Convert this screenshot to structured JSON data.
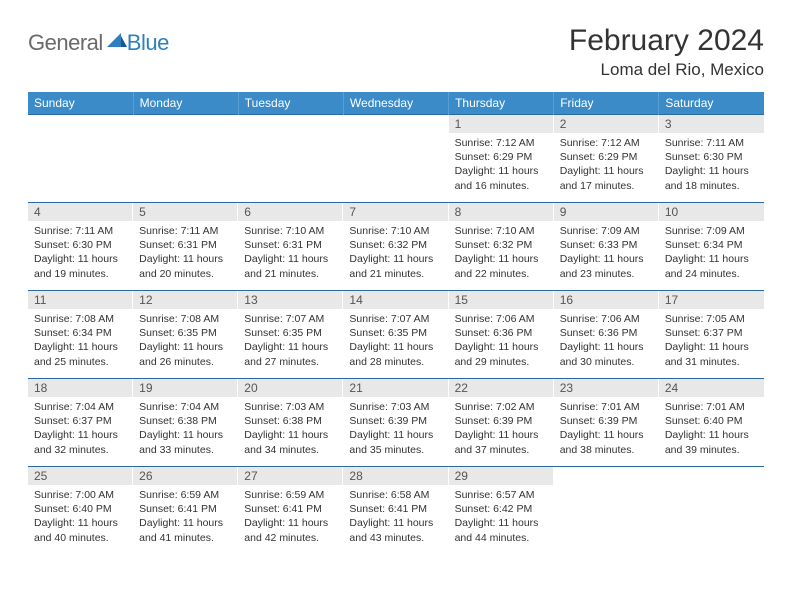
{
  "logo": {
    "part1": "General",
    "part2": "Blue"
  },
  "title": "February 2024",
  "location": "Loma del Rio, Mexico",
  "colors": {
    "header_bg": "#3b8bc9",
    "header_text": "#ffffff",
    "row_border": "#2a6aa0",
    "daynum_bg": "#e8e8e8",
    "logo_gray": "#6a6a6a",
    "logo_blue": "#2f7fbf"
  },
  "weekdays": [
    "Sunday",
    "Monday",
    "Tuesday",
    "Wednesday",
    "Thursday",
    "Friday",
    "Saturday"
  ],
  "weeks": [
    [
      null,
      null,
      null,
      null,
      {
        "n": "1",
        "sr": "Sunrise: 7:12 AM",
        "ss": "Sunset: 6:29 PM",
        "d1": "Daylight: 11 hours",
        "d2": "and 16 minutes."
      },
      {
        "n": "2",
        "sr": "Sunrise: 7:12 AM",
        "ss": "Sunset: 6:29 PM",
        "d1": "Daylight: 11 hours",
        "d2": "and 17 minutes."
      },
      {
        "n": "3",
        "sr": "Sunrise: 7:11 AM",
        "ss": "Sunset: 6:30 PM",
        "d1": "Daylight: 11 hours",
        "d2": "and 18 minutes."
      }
    ],
    [
      {
        "n": "4",
        "sr": "Sunrise: 7:11 AM",
        "ss": "Sunset: 6:30 PM",
        "d1": "Daylight: 11 hours",
        "d2": "and 19 minutes."
      },
      {
        "n": "5",
        "sr": "Sunrise: 7:11 AM",
        "ss": "Sunset: 6:31 PM",
        "d1": "Daylight: 11 hours",
        "d2": "and 20 minutes."
      },
      {
        "n": "6",
        "sr": "Sunrise: 7:10 AM",
        "ss": "Sunset: 6:31 PM",
        "d1": "Daylight: 11 hours",
        "d2": "and 21 minutes."
      },
      {
        "n": "7",
        "sr": "Sunrise: 7:10 AM",
        "ss": "Sunset: 6:32 PM",
        "d1": "Daylight: 11 hours",
        "d2": "and 21 minutes."
      },
      {
        "n": "8",
        "sr": "Sunrise: 7:10 AM",
        "ss": "Sunset: 6:32 PM",
        "d1": "Daylight: 11 hours",
        "d2": "and 22 minutes."
      },
      {
        "n": "9",
        "sr": "Sunrise: 7:09 AM",
        "ss": "Sunset: 6:33 PM",
        "d1": "Daylight: 11 hours",
        "d2": "and 23 minutes."
      },
      {
        "n": "10",
        "sr": "Sunrise: 7:09 AM",
        "ss": "Sunset: 6:34 PM",
        "d1": "Daylight: 11 hours",
        "d2": "and 24 minutes."
      }
    ],
    [
      {
        "n": "11",
        "sr": "Sunrise: 7:08 AM",
        "ss": "Sunset: 6:34 PM",
        "d1": "Daylight: 11 hours",
        "d2": "and 25 minutes."
      },
      {
        "n": "12",
        "sr": "Sunrise: 7:08 AM",
        "ss": "Sunset: 6:35 PM",
        "d1": "Daylight: 11 hours",
        "d2": "and 26 minutes."
      },
      {
        "n": "13",
        "sr": "Sunrise: 7:07 AM",
        "ss": "Sunset: 6:35 PM",
        "d1": "Daylight: 11 hours",
        "d2": "and 27 minutes."
      },
      {
        "n": "14",
        "sr": "Sunrise: 7:07 AM",
        "ss": "Sunset: 6:35 PM",
        "d1": "Daylight: 11 hours",
        "d2": "and 28 minutes."
      },
      {
        "n": "15",
        "sr": "Sunrise: 7:06 AM",
        "ss": "Sunset: 6:36 PM",
        "d1": "Daylight: 11 hours",
        "d2": "and 29 minutes."
      },
      {
        "n": "16",
        "sr": "Sunrise: 7:06 AM",
        "ss": "Sunset: 6:36 PM",
        "d1": "Daylight: 11 hours",
        "d2": "and 30 minutes."
      },
      {
        "n": "17",
        "sr": "Sunrise: 7:05 AM",
        "ss": "Sunset: 6:37 PM",
        "d1": "Daylight: 11 hours",
        "d2": "and 31 minutes."
      }
    ],
    [
      {
        "n": "18",
        "sr": "Sunrise: 7:04 AM",
        "ss": "Sunset: 6:37 PM",
        "d1": "Daylight: 11 hours",
        "d2": "and 32 minutes."
      },
      {
        "n": "19",
        "sr": "Sunrise: 7:04 AM",
        "ss": "Sunset: 6:38 PM",
        "d1": "Daylight: 11 hours",
        "d2": "and 33 minutes."
      },
      {
        "n": "20",
        "sr": "Sunrise: 7:03 AM",
        "ss": "Sunset: 6:38 PM",
        "d1": "Daylight: 11 hours",
        "d2": "and 34 minutes."
      },
      {
        "n": "21",
        "sr": "Sunrise: 7:03 AM",
        "ss": "Sunset: 6:39 PM",
        "d1": "Daylight: 11 hours",
        "d2": "and 35 minutes."
      },
      {
        "n": "22",
        "sr": "Sunrise: 7:02 AM",
        "ss": "Sunset: 6:39 PM",
        "d1": "Daylight: 11 hours",
        "d2": "and 37 minutes."
      },
      {
        "n": "23",
        "sr": "Sunrise: 7:01 AM",
        "ss": "Sunset: 6:39 PM",
        "d1": "Daylight: 11 hours",
        "d2": "and 38 minutes."
      },
      {
        "n": "24",
        "sr": "Sunrise: 7:01 AM",
        "ss": "Sunset: 6:40 PM",
        "d1": "Daylight: 11 hours",
        "d2": "and 39 minutes."
      }
    ],
    [
      {
        "n": "25",
        "sr": "Sunrise: 7:00 AM",
        "ss": "Sunset: 6:40 PM",
        "d1": "Daylight: 11 hours",
        "d2": "and 40 minutes."
      },
      {
        "n": "26",
        "sr": "Sunrise: 6:59 AM",
        "ss": "Sunset: 6:41 PM",
        "d1": "Daylight: 11 hours",
        "d2": "and 41 minutes."
      },
      {
        "n": "27",
        "sr": "Sunrise: 6:59 AM",
        "ss": "Sunset: 6:41 PM",
        "d1": "Daylight: 11 hours",
        "d2": "and 42 minutes."
      },
      {
        "n": "28",
        "sr": "Sunrise: 6:58 AM",
        "ss": "Sunset: 6:41 PM",
        "d1": "Daylight: 11 hours",
        "d2": "and 43 minutes."
      },
      {
        "n": "29",
        "sr": "Sunrise: 6:57 AM",
        "ss": "Sunset: 6:42 PM",
        "d1": "Daylight: 11 hours",
        "d2": "and 44 minutes."
      },
      null,
      null
    ]
  ]
}
